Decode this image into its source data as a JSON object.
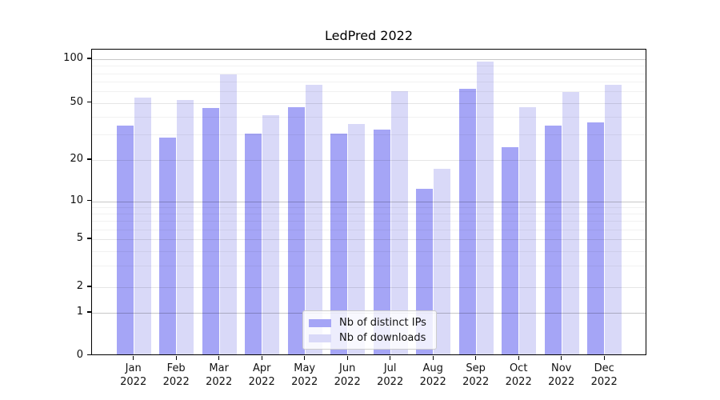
{
  "title": "LedPred 2022",
  "legend": {
    "items": [
      {
        "label": "Nb of distinct IPs",
        "color": "#a5a5f6"
      },
      {
        "label": "Nb of downloads",
        "color": "#d9d9f8"
      }
    ]
  },
  "axes": {
    "y_tick_labels": [
      "100",
      "50",
      "20",
      "10",
      "5",
      "2",
      "1",
      "0"
    ],
    "x_month_labels": [
      "Jan",
      "Feb",
      "Mar",
      "Apr",
      "May",
      "Jun",
      "Jul",
      "Aug",
      "Sep",
      "Oct",
      "Nov",
      "Dec"
    ],
    "x_year_label": "2022"
  },
  "chart_data": {
    "type": "bar",
    "title": "LedPred 2022",
    "categories": [
      "Jan 2022",
      "Feb 2022",
      "Mar 2022",
      "Apr 2022",
      "May 2022",
      "Jun 2022",
      "Jul 2022",
      "Aug 2022",
      "Sep 2022",
      "Oct 2022",
      "Nov 2022",
      "Dec 2022"
    ],
    "series": [
      {
        "name": "Nb of distinct IPs",
        "color": "#a5a5f6",
        "values": [
          34,
          28,
          45,
          30,
          46,
          30,
          32,
          12,
          61,
          24,
          34,
          36
        ]
      },
      {
        "name": "Nb of downloads",
        "color": "#d9d9f8",
        "values": [
          53,
          51,
          77,
          40,
          65,
          35,
          59,
          17,
          94,
          46,
          58,
          65
        ]
      }
    ],
    "xlabel": "",
    "ylabel": "",
    "yscale": "symlog",
    "ylim": [
      0,
      115
    ],
    "y_major_ticks": [
      0,
      1,
      2,
      5,
      10,
      20,
      50,
      100
    ],
    "y_minor_ticks": [
      3,
      4,
      6,
      7,
      8,
      9,
      30,
      40,
      60,
      70,
      80,
      90
    ],
    "grid": true,
    "legend_position": "lower center"
  }
}
